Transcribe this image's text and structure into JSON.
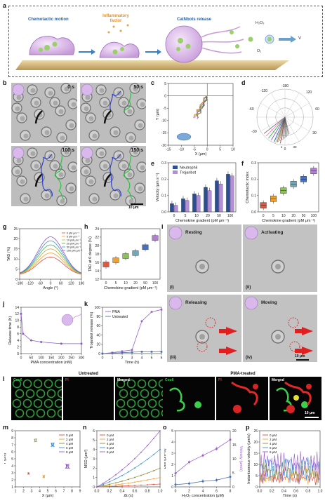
{
  "panels": {
    "a": "a",
    "b": "b",
    "c": "c",
    "d": "d",
    "e": "e",
    "f": "f",
    "g": "g",
    "h": "h",
    "i": "i",
    "j": "j",
    "k": "k",
    "l": "l",
    "m": "m",
    "n": "n",
    "o": "o",
    "p": "p"
  },
  "schematic": {
    "chemotactic": "Chemotactic motion",
    "inflammatory": "Inflammatory factor",
    "release": "CatNbots release",
    "h2o2": "H₂O₂",
    "o2": "O₂",
    "v": "V"
  },
  "b_times": [
    "0 s",
    "50 s",
    "100 s",
    "150 s"
  ],
  "b_scale": "10 μm",
  "i_labels": {
    "resting": "Resting",
    "activating": "Activating",
    "releasing": "Releasing",
    "moving": "Moving",
    "r1": "(i)",
    "r2": "(ii)",
    "r3": "(iii)",
    "r4": "(iv)",
    "scale": "10 μm"
  },
  "l_labels": {
    "untreated": "Untreated",
    "pma": "PMA-treated",
    "cou": "Cou6",
    "pi": "PI",
    "merged": "Merged",
    "scale": "10 μm"
  },
  "legend_k": [
    "PMA",
    "Untreated"
  ],
  "legend_conc": [
    "0 μM",
    "2 μM",
    "4 μM",
    "6 μM",
    "8 μM"
  ],
  "legend_g": [
    "0 pM μm⁻¹",
    "5 pM μm⁻¹",
    "10 pM μm⁻¹",
    "20 pM μm⁻¹",
    "50 pM μm⁻¹",
    "100 pM μm⁻¹"
  ],
  "colors": {
    "neutrophil": "#2e4f8f",
    "trojanbot": "#b58fd6",
    "pma": "#9a60c8",
    "untreated": "#4a6fb0"
  },
  "chart_data": [
    {
      "id": "c",
      "type": "scatter",
      "xlabel": "X (μm)",
      "ylabel": "Y (μm)",
      "xlim": [
        -15,
        10
      ],
      "ylim": [
        -20,
        5
      ],
      "xticks": [
        -15,
        -10,
        -5,
        0,
        5,
        10
      ],
      "yticks": [
        -20,
        -15,
        -10,
        -5,
        0,
        5
      ]
    },
    {
      "id": "d",
      "type": "polar",
      "angle_ticks": [
        "-180",
        "180",
        "-120",
        "120",
        "-60",
        "60",
        "-30",
        "30",
        "0"
      ],
      "radial_ticks": [
        "1",
        "30"
      ]
    },
    {
      "id": "e",
      "type": "bar",
      "categories": [
        "0",
        "5",
        "10",
        "20",
        "50",
        "100"
      ],
      "series": [
        {
          "name": "Neutrophil",
          "values": [
            0.05,
            0.08,
            0.11,
            0.15,
            0.19,
            0.23
          ]
        },
        {
          "name": "Trojanbot",
          "values": [
            0.04,
            0.07,
            0.1,
            0.13,
            0.17,
            0.22
          ]
        }
      ],
      "xlabel": "Chemokine gradient (pM μm⁻¹)",
      "ylabel": "Velocity (μm s⁻¹)",
      "ylim": [
        0,
        0.3
      ],
      "yticks": [
        "0.0",
        "0.1",
        "0.2",
        "0.3"
      ]
    },
    {
      "id": "f",
      "type": "box",
      "categories": [
        "0",
        "5",
        "10",
        "20",
        "50",
        "100"
      ],
      "values": [
        0.04,
        0.08,
        0.13,
        0.17,
        0.2,
        0.25
      ],
      "xlabel": "Chemokine gradient (pM μm⁻¹)",
      "ylabel": "Chemotactic index",
      "ylim": [
        0,
        0.3
      ],
      "yticks": [
        "0.0",
        "0.1",
        "0.2",
        "0.3"
      ]
    },
    {
      "id": "g",
      "type": "line",
      "xlabel": "Angle (°)",
      "ylabel": "TAD (%)",
      "xlim": [
        -180,
        180
      ],
      "ylim": [
        0,
        25
      ],
      "xticks": [
        "-180",
        "-120",
        "-60",
        "0",
        "60",
        "120",
        "180"
      ],
      "yticks": [
        "0",
        "5",
        "10",
        "15",
        "20",
        "25"
      ],
      "peaks": [
        11,
        13,
        15,
        17,
        19,
        21
      ]
    },
    {
      "id": "h",
      "type": "box",
      "categories": [
        "0",
        "5",
        "10",
        "20",
        "50",
        "100"
      ],
      "values": [
        15.5,
        16.5,
        17.5,
        18.2,
        19.6,
        21.8
      ],
      "xlabel": "Chemokine gradient (pM μm⁻¹)",
      "ylabel": "TAD at 0 degree (%)",
      "ylim": [
        12,
        24
      ],
      "yticks": [
        "12",
        "14",
        "16",
        "18",
        "20",
        "22",
        "24"
      ]
    },
    {
      "id": "j",
      "type": "line",
      "x": [
        0,
        10,
        50,
        100,
        200,
        300
      ],
      "values": [
        12,
        6,
        4,
        3.5,
        3,
        3
      ],
      "xlabel": "PMA concentration (nM)",
      "ylabel": "Release time (h)",
      "xlim": [
        0,
        300
      ],
      "ylim": [
        0,
        14
      ],
      "xticks": [
        "0",
        "50",
        "100",
        "150",
        "200",
        "250",
        "300"
      ],
      "yticks": [
        "0",
        "2",
        "4",
        "6",
        "8",
        "10",
        "12",
        "14"
      ]
    },
    {
      "id": "k",
      "type": "line",
      "x": [
        0,
        1,
        2,
        3,
        4,
        5,
        6
      ],
      "series": [
        {
          "name": "PMA",
          "values": [
            0,
            2,
            5,
            8,
            70,
            90,
            95
          ]
        },
        {
          "name": "Untreated",
          "values": [
            0,
            1,
            2,
            3,
            4,
            4,
            4
          ]
        }
      ],
      "xlabel": "Time (h)",
      "ylabel": "Trojanbot release (%)",
      "xlim": [
        0,
        6
      ],
      "ylim": [
        0,
        100
      ],
      "xticks": [
        "0",
        "1",
        "2",
        "3",
        "4",
        "5",
        "6"
      ],
      "yticks": [
        "0",
        "20",
        "40",
        "60",
        "80",
        "100"
      ]
    },
    {
      "id": "m",
      "type": "scatter",
      "xlabel": "X (μm)",
      "ylabel": "Y (μm)",
      "xlim": [
        1,
        9
      ],
      "ylim": [
        1,
        9
      ],
      "xticks": [
        "1",
        "2",
        "3",
        "4",
        "5",
        "6",
        "7",
        "8",
        "9"
      ],
      "yticks": [
        "1",
        "2",
        "3",
        "4",
        "5",
        "6",
        "7",
        "8",
        "9"
      ]
    },
    {
      "id": "n",
      "type": "line",
      "x": [
        0,
        1
      ],
      "series": [
        {
          "name": "0 μM",
          "values": [
            0,
            0.3
          ]
        },
        {
          "name": "2 μM",
          "values": [
            0,
            1
          ]
        },
        {
          "name": "4 μM",
          "values": [
            0,
            2
          ]
        },
        {
          "name": "6 μM",
          "values": [
            0,
            4
          ]
        },
        {
          "name": "8 μM",
          "values": [
            0,
            6
          ]
        }
      ],
      "xlabel": "Δt (s)",
      "ylabel": "MSD (μm²)",
      "xlim": [
        0,
        1
      ],
      "ylim": [
        0,
        6
      ],
      "xticks": [
        "0.0",
        "0.2",
        "0.4",
        "0.6",
        "0.8",
        "1.0"
      ],
      "yticks": [
        "0",
        "1",
        "2",
        "3",
        "4",
        "5",
        "6"
      ]
    },
    {
      "id": "o",
      "type": "line",
      "x": [
        0,
        2,
        4,
        6,
        8
      ],
      "series": [
        {
          "name": "Deff",
          "values": [
            1.2,
            2.2,
            2.8,
            3.4,
            4.2
          ]
        },
        {
          "name": "Velocity",
          "values": [
            0.2,
            0.3,
            0.5,
            0.6,
            0.9
          ]
        }
      ],
      "xlabel": "H₂O₂ concentration (μM)",
      "ylabel": "Deff (μm²/s)",
      "ylabel2": "Velocity (μm/s)",
      "xlim": [
        0,
        8
      ],
      "ylim": [
        0,
        5
      ],
      "xticks": [
        "0",
        "2",
        "4",
        "6",
        "8"
      ],
      "yticks": [
        "0",
        "1",
        "2",
        "3",
        "4",
        "5"
      ],
      "y2ticks": [
        "0",
        "5",
        "10",
        "15",
        "20"
      ]
    },
    {
      "id": "p",
      "type": "line",
      "xlabel": "Time (s)",
      "ylabel": "Instantaneous velocity (μm/s)",
      "xlim": [
        0,
        1
      ],
      "ylim": [
        0,
        25
      ],
      "xticks": [
        "0.0",
        "0.2",
        "0.4",
        "0.6",
        "0.8",
        "1.0"
      ],
      "yticks": [
        "0",
        "5",
        "10",
        "15",
        "20",
        "25"
      ]
    }
  ]
}
